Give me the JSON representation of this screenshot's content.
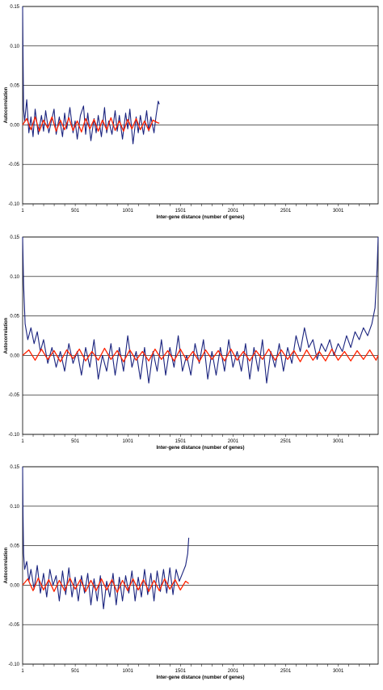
{
  "colors": {
    "series_blue": "#1a237e",
    "series_red": "#ff2200",
    "grid": "#000000",
    "background": "#ffffff"
  },
  "chart_data": [
    {
      "type": "line",
      "xlabel": "Inter-gene distance (number of genes)",
      "ylabel": "Autocorrelation",
      "ylim": [
        -0.1,
        0.15
      ],
      "xlim": [
        1,
        3380
      ],
      "yticks": [
        "-0.10",
        "-0.05",
        "0.00",
        "0.05",
        "0.10",
        "0.15"
      ],
      "xticks": [
        "1",
        "501",
        "1001",
        "1501",
        "2001",
        "2501",
        "3001"
      ],
      "grid": "horizontal",
      "series": [
        {
          "color": "#1a237e",
          "x": [
            1,
            5,
            10,
            20,
            40,
            60,
            80,
            100,
            120,
            150,
            180,
            200,
            220,
            250,
            280,
            300,
            320,
            350,
            380,
            400,
            420,
            450,
            480,
            500,
            520,
            550,
            580,
            600,
            620,
            650,
            680,
            700,
            720,
            750,
            780,
            800,
            820,
            850,
            880,
            900,
            920,
            950,
            980,
            1000,
            1020,
            1050,
            1080,
            1100,
            1120,
            1150,
            1180,
            1200,
            1220,
            1250,
            1270,
            1290,
            1300
          ],
          "y": [
            0.15,
            0.09,
            0.02,
            0.005,
            0.032,
            -0.01,
            0.01,
            -0.015,
            0.02,
            -0.012,
            0.012,
            -0.008,
            0.018,
            -0.01,
            0.008,
            0.02,
            -0.012,
            0.01,
            -0.015,
            0.015,
            -0.005,
            0.022,
            -0.01,
            0.005,
            -0.018,
            0.012,
            0.024,
            -0.012,
            0.015,
            -0.02,
            0.008,
            -0.01,
            0.012,
            -0.015,
            0.022,
            -0.01,
            0.005,
            -0.012,
            0.018,
            -0.008,
            0.012,
            -0.018,
            0.015,
            -0.005,
            0.02,
            -0.024,
            0.01,
            -0.01,
            0.012,
            -0.012,
            0.018,
            -0.008,
            0.01,
            -0.01,
            0.012,
            0.03,
            0.026
          ]
        },
        {
          "color": "#ff2200",
          "x": [
            1,
            40,
            80,
            120,
            160,
            200,
            240,
            280,
            320,
            360,
            400,
            440,
            480,
            520,
            560,
            600,
            640,
            680,
            720,
            760,
            800,
            840,
            880,
            920,
            960,
            1000,
            1040,
            1080,
            1120,
            1160,
            1200,
            1240,
            1280,
            1300
          ],
          "y": [
            0.0,
            0.008,
            -0.006,
            0.01,
            -0.008,
            0.006,
            -0.004,
            0.01,
            -0.008,
            0.006,
            -0.006,
            0.009,
            -0.007,
            0.005,
            -0.009,
            0.008,
            -0.005,
            0.007,
            -0.008,
            0.006,
            -0.006,
            0.009,
            -0.007,
            0.005,
            -0.008,
            0.007,
            -0.005,
            0.008,
            -0.006,
            0.005,
            -0.007,
            0.006,
            0.003,
            0.002
          ]
        }
      ]
    },
    {
      "type": "line",
      "xlabel": "Inter-gene distance (number of genes)",
      "ylabel": "Autocorrelation",
      "ylim": [
        -0.1,
        0.15
      ],
      "xlim": [
        1,
        3380
      ],
      "yticks": [
        "-0.10",
        "-0.05",
        "0.00",
        "0.05",
        "0.10",
        "0.15"
      ],
      "xticks": [
        "1",
        "501",
        "1001",
        "1501",
        "2001",
        "2501",
        "3001"
      ],
      "grid": "horizontal",
      "series": [
        {
          "color": "#1a237e",
          "x": [
            1,
            10,
            25,
            50,
            80,
            110,
            140,
            170,
            200,
            240,
            280,
            320,
            360,
            400,
            440,
            480,
            520,
            560,
            600,
            640,
            680,
            720,
            760,
            800,
            840,
            880,
            920,
            960,
            1000,
            1040,
            1080,
            1120,
            1160,
            1200,
            1240,
            1280,
            1320,
            1360,
            1400,
            1440,
            1480,
            1520,
            1560,
            1600,
            1640,
            1680,
            1720,
            1760,
            1800,
            1840,
            1880,
            1920,
            1960,
            2000,
            2040,
            2080,
            2120,
            2160,
            2200,
            2240,
            2280,
            2320,
            2360,
            2400,
            2440,
            2480,
            2520,
            2560,
            2600,
            2640,
            2680,
            2720,
            2760,
            2800,
            2840,
            2880,
            2920,
            2960,
            3000,
            3040,
            3080,
            3120,
            3160,
            3200,
            3240,
            3280,
            3320,
            3350,
            3370,
            3380
          ],
          "y": [
            0.15,
            0.09,
            0.04,
            0.02,
            0.035,
            0.015,
            0.03,
            0.005,
            0.02,
            -0.01,
            0.01,
            -0.015,
            0.005,
            -0.02,
            0.015,
            -0.01,
            0.005,
            -0.025,
            0.01,
            -0.015,
            0.02,
            -0.03,
            0.0,
            -0.02,
            0.015,
            -0.025,
            0.01,
            -0.02,
            0.025,
            -0.015,
            0.005,
            -0.03,
            0.01,
            -0.035,
            0.005,
            -0.02,
            0.02,
            -0.025,
            0.01,
            -0.015,
            0.025,
            -0.02,
            0.0,
            -0.025,
            0.015,
            -0.01,
            0.02,
            -0.03,
            0.005,
            -0.025,
            0.01,
            -0.02,
            0.02,
            -0.015,
            0.005,
            -0.02,
            0.015,
            -0.03,
            0.01,
            -0.02,
            0.02,
            -0.035,
            0.005,
            -0.015,
            0.015,
            -0.02,
            0.01,
            -0.01,
            0.025,
            0.005,
            0.035,
            0.01,
            0.02,
            -0.005,
            0.015,
            0.005,
            0.02,
            0.0,
            0.015,
            0.005,
            0.025,
            0.01,
            0.03,
            0.02,
            0.035,
            0.025,
            0.04,
            0.06,
            0.11,
            0.15
          ]
        },
        {
          "color": "#ff2200",
          "x": [
            1,
            60,
            120,
            180,
            240,
            300,
            360,
            420,
            480,
            540,
            600,
            660,
            720,
            780,
            840,
            900,
            960,
            1020,
            1080,
            1140,
            1200,
            1260,
            1320,
            1380,
            1440,
            1500,
            1560,
            1620,
            1680,
            1740,
            1800,
            1860,
            1920,
            1980,
            2040,
            2100,
            2160,
            2220,
            2280,
            2340,
            2400,
            2460,
            2520,
            2580,
            2640,
            2700,
            2760,
            2820,
            2880,
            2940,
            3000,
            3060,
            3120,
            3180,
            3240,
            3300,
            3360,
            3380
          ],
          "y": [
            0.0,
            0.007,
            -0.006,
            0.008,
            -0.005,
            0.006,
            -0.008,
            0.007,
            -0.004,
            0.008,
            -0.007,
            0.005,
            -0.006,
            0.009,
            -0.005,
            0.006,
            -0.008,
            0.007,
            -0.006,
            0.005,
            -0.007,
            0.008,
            -0.005,
            0.006,
            -0.007,
            0.008,
            -0.006,
            0.005,
            -0.008,
            0.007,
            -0.005,
            0.006,
            -0.007,
            0.008,
            -0.006,
            0.005,
            -0.007,
            0.006,
            -0.005,
            0.008,
            -0.006,
            0.007,
            -0.005,
            0.006,
            -0.008,
            0.007,
            -0.006,
            0.005,
            -0.007,
            0.008,
            -0.006,
            0.005,
            -0.007,
            0.006,
            -0.005,
            0.007,
            -0.006,
            0.0
          ]
        }
      ]
    },
    {
      "type": "line",
      "xlabel": "Inter-gene distance (number of genes)",
      "ylabel": "Autocorrelation",
      "ylim": [
        -0.1,
        0.15
      ],
      "xlim": [
        1,
        3380
      ],
      "yticks": [
        "-0.10",
        "-0.05",
        "0.00",
        "0.05",
        "0.10",
        "0.15"
      ],
      "xticks": [
        "1",
        "501",
        "1001",
        "1501",
        "2001",
        "2501",
        "3001"
      ],
      "grid": "horizontal",
      "series": [
        {
          "color": "#1a237e",
          "x": [
            1,
            5,
            10,
            20,
            40,
            60,
            80,
            110,
            140,
            170,
            200,
            230,
            260,
            290,
            320,
            350,
            380,
            410,
            440,
            470,
            500,
            530,
            560,
            590,
            620,
            650,
            680,
            710,
            740,
            770,
            800,
            830,
            860,
            890,
            920,
            950,
            980,
            1010,
            1040,
            1070,
            1100,
            1130,
            1160,
            1190,
            1220,
            1250,
            1280,
            1310,
            1340,
            1370,
            1400,
            1430,
            1460,
            1490,
            1520,
            1550,
            1570,
            1580
          ],
          "y": [
            0.15,
            0.09,
            0.04,
            0.02,
            0.03,
            0.005,
            0.02,
            -0.005,
            0.025,
            -0.01,
            0.015,
            -0.015,
            0.02,
            0.0,
            0.012,
            -0.02,
            0.018,
            -0.012,
            0.022,
            -0.015,
            0.01,
            -0.02,
            0.012,
            -0.01,
            0.015,
            -0.025,
            0.008,
            -0.02,
            0.012,
            -0.03,
            0.005,
            -0.015,
            0.015,
            -0.025,
            0.01,
            -0.02,
            0.012,
            -0.01,
            0.018,
            -0.02,
            0.01,
            -0.015,
            0.02,
            -0.012,
            0.015,
            -0.02,
            0.018,
            -0.008,
            0.02,
            -0.01,
            0.022,
            -0.012,
            0.02,
            0.005,
            0.015,
            0.025,
            0.04,
            0.06
          ]
        },
        {
          "color": "#ff2200",
          "x": [
            1,
            50,
            100,
            150,
            200,
            250,
            300,
            350,
            400,
            450,
            500,
            550,
            600,
            650,
            700,
            750,
            800,
            850,
            900,
            950,
            1000,
            1050,
            1100,
            1150,
            1200,
            1250,
            1300,
            1350,
            1400,
            1450,
            1500,
            1550,
            1580
          ],
          "y": [
            0.0,
            0.008,
            -0.007,
            0.009,
            -0.006,
            0.007,
            -0.008,
            0.006,
            -0.007,
            0.009,
            -0.005,
            0.007,
            -0.008,
            0.006,
            -0.007,
            0.008,
            -0.006,
            0.007,
            -0.009,
            0.006,
            -0.007,
            0.008,
            -0.006,
            0.007,
            -0.008,
            0.006,
            -0.007,
            0.008,
            -0.005,
            0.007,
            -0.006,
            0.005,
            0.002
          ]
        }
      ]
    }
  ]
}
